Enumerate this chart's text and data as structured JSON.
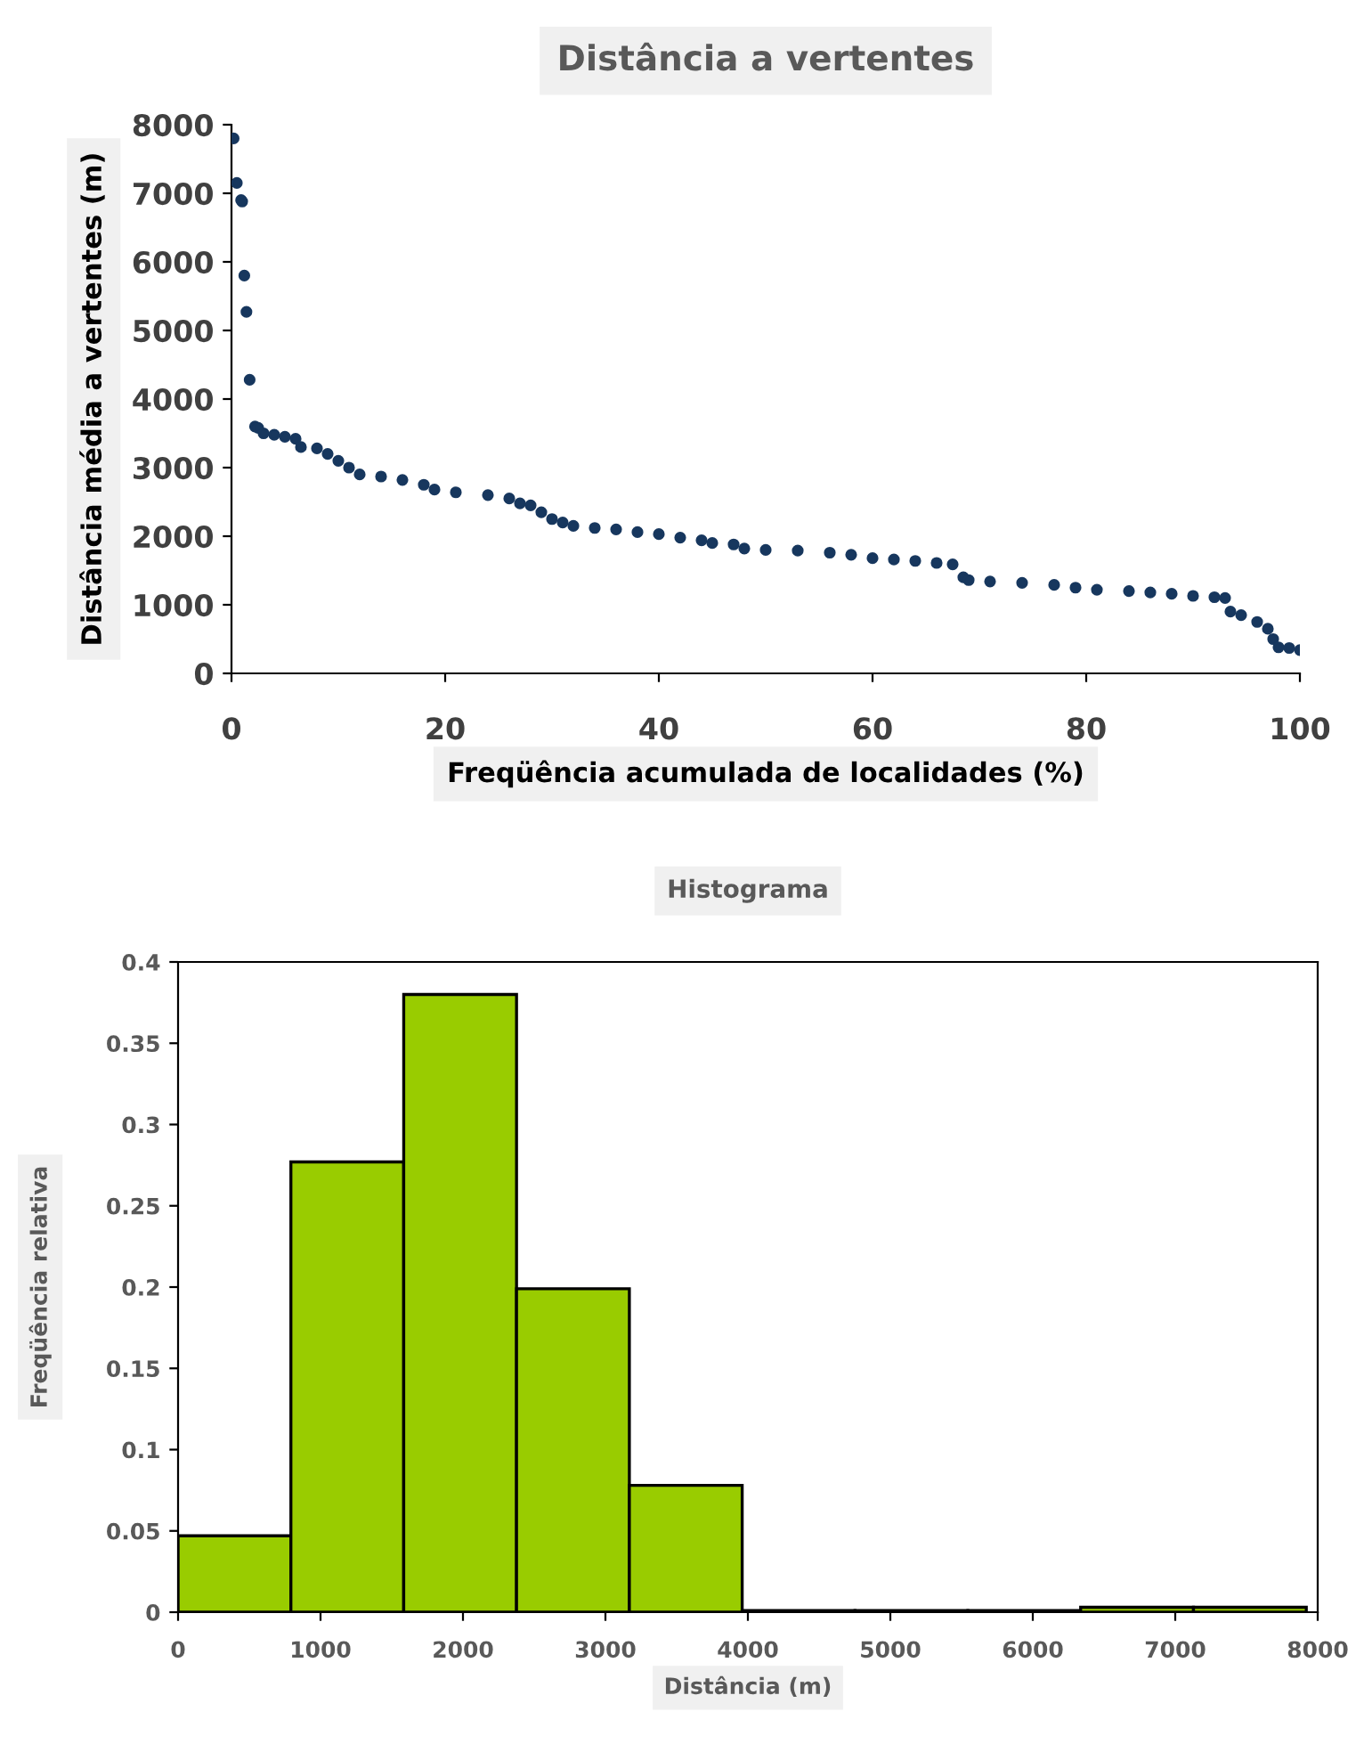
{
  "chart_data": [
    {
      "type": "scatter",
      "title": "Distância a vertentes",
      "xlabel": "Freqüência acumulada de localidades (%)",
      "ylabel": "Distância média a vertentes (m)",
      "series": [
        {
          "color": "#17375e",
          "x": [
            0.2,
            0.5,
            0.9,
            1.0,
            1.2,
            1.4,
            1.7,
            2.2,
            2.5,
            3,
            4,
            5,
            6,
            6.5,
            8,
            9,
            10,
            11,
            12,
            14,
            16,
            18,
            19,
            21,
            24,
            26,
            27,
            28,
            29,
            30,
            31,
            32,
            34,
            36,
            38,
            40,
            42,
            44,
            45,
            47,
            48,
            50,
            53,
            56,
            58,
            60,
            62,
            64,
            66,
            67.5,
            68.5,
            69,
            71,
            74,
            77,
            79,
            81,
            84,
            86,
            88,
            90,
            92,
            93,
            93.5,
            94.5,
            96,
            97,
            97.5,
            98,
            99,
            100
          ],
          "values": [
            7800,
            7150,
            6900,
            6880,
            5800,
            5270,
            4280,
            3600,
            3580,
            3500,
            3480,
            3450,
            3420,
            3300,
            3280,
            3200,
            3100,
            3000,
            2900,
            2870,
            2820,
            2750,
            2680,
            2640,
            2600,
            2550,
            2480,
            2450,
            2350,
            2250,
            2200,
            2150,
            2120,
            2100,
            2060,
            2030,
            1980,
            1940,
            1900,
            1880,
            1820,
            1800,
            1790,
            1760,
            1730,
            1680,
            1660,
            1640,
            1610,
            1590,
            1400,
            1360,
            1340,
            1320,
            1290,
            1250,
            1220,
            1200,
            1180,
            1160,
            1130,
            1110,
            1100,
            900,
            850,
            750,
            650,
            500,
            380,
            370,
            340
          ]
        }
      ],
      "xlim": [
        0,
        100
      ],
      "xticks": [
        0,
        20,
        40,
        60,
        80,
        100
      ],
      "ylim": [
        0,
        8000
      ],
      "yticks": [
        0,
        1000,
        2000,
        3000,
        4000,
        5000,
        6000,
        7000,
        8000
      ],
      "marker": "circle",
      "grid": false,
      "legend": false
    },
    {
      "type": "histogram",
      "title": "Histograma",
      "xlabel": "Distância (m)",
      "ylabel": "Freqüência relativa",
      "bins": [
        0,
        792,
        1584,
        2376,
        3168,
        3960,
        4752,
        5544,
        6336,
        7128,
        7920
      ],
      "values": [
        0.047,
        0.277,
        0.38,
        0.199,
        0.078,
        0.001,
        0.001,
        0.001,
        0.003,
        0.003
      ],
      "color": "#99cc00",
      "xlim": [
        0,
        8000
      ],
      "xticks": [
        0,
        1000,
        2000,
        3000,
        4000,
        5000,
        6000,
        7000,
        8000
      ],
      "ylim": [
        0,
        0.4
      ],
      "yticks": [
        0,
        0.05,
        0.1,
        0.15,
        0.2,
        0.25,
        0.3,
        0.35,
        0.4
      ],
      "grid": false,
      "legend": false
    }
  ]
}
